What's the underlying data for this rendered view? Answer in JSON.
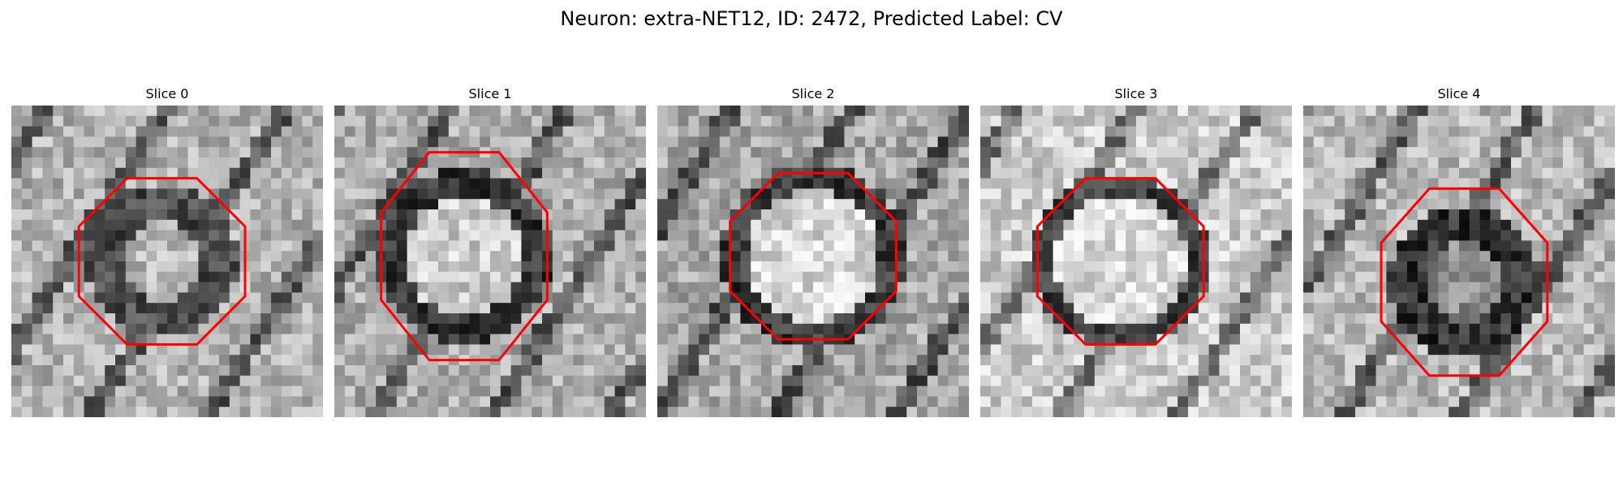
{
  "figure": {
    "title": "Neuron: extra-NET12, ID: 2472, Predicted Label: CV"
  },
  "panels": [
    {
      "title": "Slice 0",
      "roi": {
        "cx": 14.5,
        "cy": 15.0,
        "rx": 8.0,
        "ry": 8.0
      },
      "ring": {
        "r": 5.5,
        "w": 3.5
      },
      "center_level": 0.72,
      "ring_level": 0.3,
      "bg_level": 0.7
    },
    {
      "title": "Slice 1",
      "roi": {
        "cx": 12.5,
        "cy": 14.5,
        "rx": 8.0,
        "ry": 10.0
      },
      "ring": {
        "r": 7.0,
        "w": 2.6
      },
      "center_level": 0.8,
      "ring_level": 0.22,
      "bg_level": 0.68
    },
    {
      "title": "Slice 2",
      "roi": {
        "cx": 15.0,
        "cy": 14.5,
        "rx": 8.0,
        "ry": 8.0
      },
      "ring": {
        "r": 7.7,
        "w": 2.4
      },
      "center_level": 0.84,
      "ring_level": 0.22,
      "bg_level": 0.66
    },
    {
      "title": "Slice 3",
      "roi": {
        "cx": 13.5,
        "cy": 15.0,
        "rx": 8.0,
        "ry": 8.0
      },
      "ring": {
        "r": 7.4,
        "w": 2.0
      },
      "center_level": 0.86,
      "ring_level": 0.26,
      "bg_level": 0.8
    },
    {
      "title": "Slice 4",
      "roi": {
        "cx": 15.5,
        "cy": 17.0,
        "rx": 8.0,
        "ry": 9.0
      },
      "ring": {
        "r": 5.5,
        "w": 3.6
      },
      "center_level": 0.55,
      "ring_level": 0.2,
      "bg_level": 0.72
    }
  ],
  "colors": {
    "roi_outline": "#ff0000",
    "background": "#ffffff"
  }
}
